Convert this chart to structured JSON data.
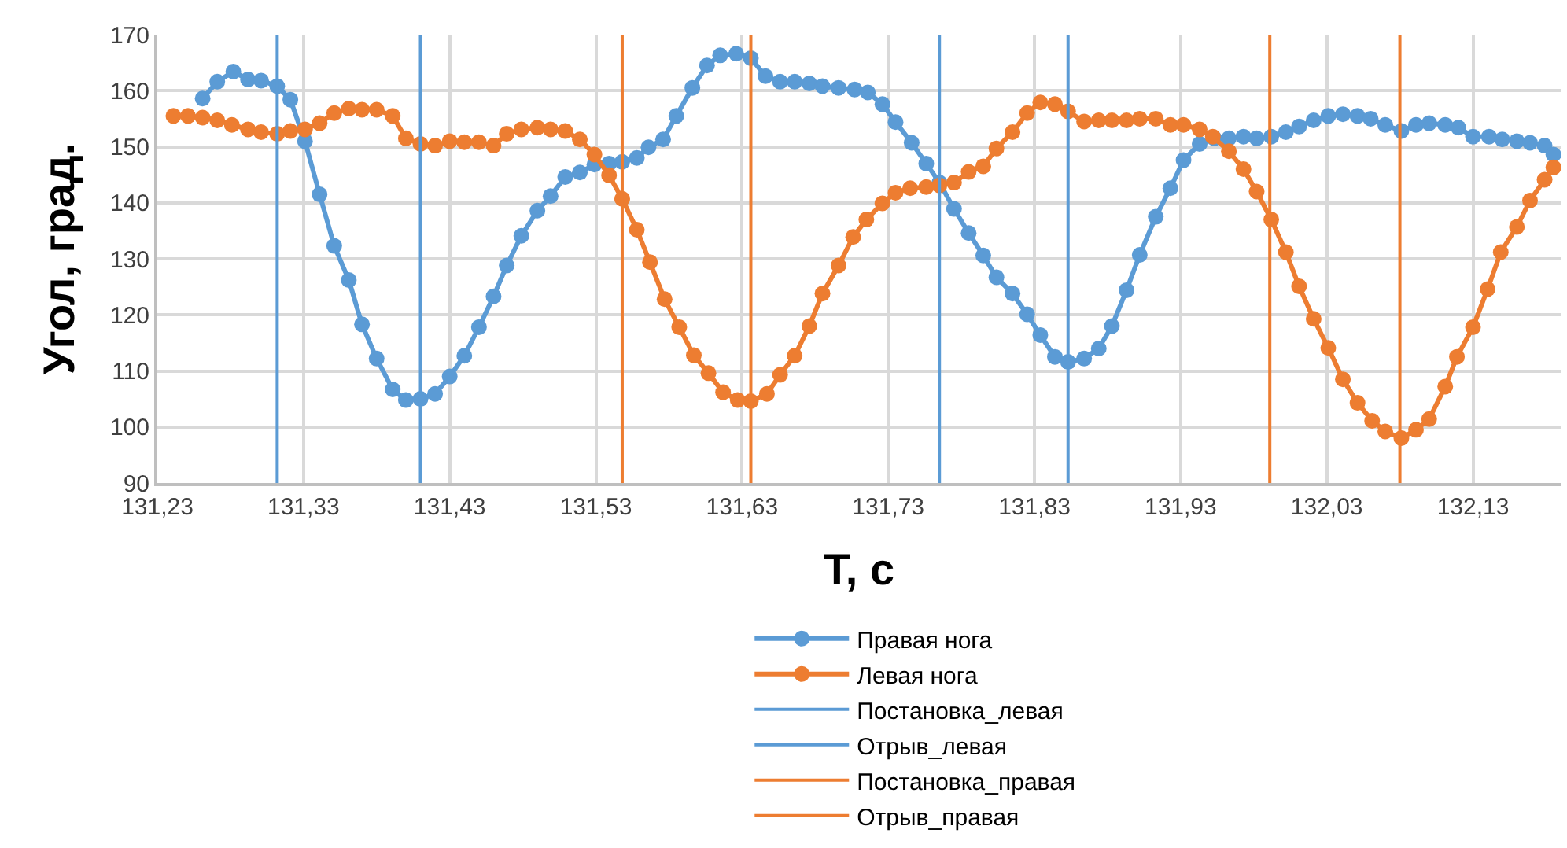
{
  "chart_data": {
    "type": "line",
    "xlabel": "T, c",
    "ylabel": "Угол, град.",
    "xlim": [
      131.23,
      132.19
    ],
    "xticks": [
      {
        "value": 131.23,
        "label": "131,23"
      },
      {
        "value": 131.33,
        "label": "131,33"
      },
      {
        "value": 131.43,
        "label": "131,43"
      },
      {
        "value": 131.53,
        "label": "131,53"
      },
      {
        "value": 131.63,
        "label": "131,63"
      },
      {
        "value": 131.73,
        "label": "131,73"
      },
      {
        "value": 131.83,
        "label": "131,83"
      },
      {
        "value": 131.93,
        "label": "131,93"
      },
      {
        "value": 132.03,
        "label": "132,03"
      },
      {
        "value": 132.13,
        "label": "132,13"
      }
    ],
    "ylim": [
      90,
      170
    ],
    "yticks": [
      90,
      100,
      110,
      120,
      130,
      140,
      150,
      160,
      170
    ],
    "grid": true,
    "legend": "bottom",
    "marker": "circle",
    "line_style": "solid",
    "series": [
      {
        "name": "Правая нога",
        "color": "#5b9bd5",
        "x": [
          131.261,
          131.271,
          131.282,
          131.292,
          131.301,
          131.312,
          131.321,
          131.331,
          131.341,
          131.351,
          131.361,
          131.37,
          131.38,
          131.391,
          131.4,
          131.41,
          131.42,
          131.43,
          131.44,
          131.45,
          131.46,
          131.469,
          131.479,
          131.49,
          131.499,
          131.509,
          131.519,
          131.529,
          131.539,
          131.548,
          131.558,
          131.566,
          131.576,
          131.585,
          131.596,
          131.606,
          131.615,
          131.626,
          131.636,
          131.646,
          131.656,
          131.666,
          131.676,
          131.685,
          131.696,
          131.707,
          131.716,
          131.726,
          131.735,
          131.746,
          131.756,
          131.765,
          131.775,
          131.785,
          131.795,
          131.804,
          131.815,
          131.825,
          131.834,
          131.844,
          131.853,
          131.864,
          131.874,
          131.883,
          131.893,
          131.902,
          131.913,
          131.923,
          131.932,
          131.943,
          131.953,
          131.963,
          131.973,
          131.982,
          131.992,
          132.002,
          132.011,
          132.021,
          132.031,
          132.041,
          132.051,
          132.06,
          132.07,
          132.081,
          132.091,
          132.1,
          132.111,
          132.12,
          132.13,
          132.141,
          132.15,
          132.16,
          132.169,
          132.179,
          132.185
        ],
        "values": [
          158.6,
          161.6,
          163.4,
          162,
          161.8,
          160.8,
          158.4,
          151,
          141.5,
          132.3,
          126.2,
          118.3,
          112.2,
          106.7,
          104.8,
          105,
          105.9,
          109,
          112.7,
          117.8,
          123.3,
          128.8,
          134.1,
          138.6,
          141.2,
          144.6,
          145.4,
          146.8,
          147,
          147.3,
          148,
          149.9,
          151.3,
          155.5,
          160.5,
          164.5,
          166.3,
          166.6,
          165.8,
          162.6,
          161.6,
          161.6,
          161.3,
          160.8,
          160.5,
          160.2,
          159.7,
          157.6,
          154.4,
          150.7,
          147,
          143.6,
          138.9,
          134.6,
          130.6,
          126.7,
          123.8,
          120.1,
          116.4,
          112.5,
          111.6,
          112.2,
          114,
          118,
          124.4,
          130.7,
          137.5,
          142.6,
          147.6,
          150.5,
          151.5,
          151.5,
          151.8,
          151.5,
          151.8,
          152.6,
          153.6,
          154.7,
          155.5,
          155.8,
          155.5,
          155,
          153.9,
          152.8,
          153.9,
          154.2,
          153.9,
          153.4,
          151.8,
          151.8,
          151.3,
          151,
          150.7,
          150.2,
          148.6
        ]
      },
      {
        "name": "Левая нога",
        "color": "#ed7d31",
        "x": [
          131.241,
          131.251,
          131.261,
          131.271,
          131.281,
          131.292,
          131.301,
          131.312,
          131.321,
          131.331,
          131.341,
          131.351,
          131.361,
          131.37,
          131.38,
          131.391,
          131.4,
          131.41,
          131.42,
          131.43,
          131.44,
          131.45,
          131.46,
          131.469,
          131.479,
          131.49,
          131.499,
          131.509,
          131.519,
          131.529,
          131.539,
          131.548,
          131.558,
          131.567,
          131.577,
          131.587,
          131.597,
          131.607,
          131.617,
          131.627,
          131.636,
          131.647,
          131.656,
          131.666,
          131.676,
          131.685,
          131.696,
          131.706,
          131.715,
          131.726,
          131.735,
          131.745,
          131.756,
          131.765,
          131.775,
          131.785,
          131.795,
          131.804,
          131.815,
          131.825,
          131.834,
          131.844,
          131.853,
          131.864,
          131.874,
          131.883,
          131.893,
          131.902,
          131.913,
          131.923,
          131.932,
          131.943,
          131.952,
          131.963,
          131.973,
          131.982,
          131.992,
          132.002,
          132.011,
          132.021,
          132.031,
          132.041,
          132.051,
          132.061,
          132.07,
          132.081,
          132.091,
          132.1,
          132.111,
          132.119,
          132.13,
          132.14,
          132.149,
          132.16,
          132.169,
          132.179,
          132.185
        ],
        "values": [
          155.5,
          155.5,
          155.2,
          154.7,
          153.9,
          153.1,
          152.6,
          152.3,
          152.8,
          153.1,
          154.2,
          156,
          156.8,
          156.6,
          156.6,
          155.5,
          151.5,
          150.5,
          150.2,
          151,
          150.8,
          150.8,
          150.2,
          152.3,
          153.1,
          153.4,
          153.1,
          152.8,
          151.3,
          148.6,
          144.9,
          140.7,
          135.2,
          129.4,
          122.8,
          117.8,
          112.8,
          109.6,
          106.2,
          104.8,
          104.6,
          105.9,
          109.3,
          112.7,
          118,
          123.8,
          128.8,
          133.9,
          137,
          139.9,
          141.8,
          142.6,
          142.8,
          143.1,
          143.6,
          145.5,
          146.5,
          149.7,
          152.6,
          156,
          157.9,
          157.6,
          156.3,
          154.5,
          154.7,
          154.7,
          154.7,
          155,
          155,
          153.9,
          153.9,
          153.1,
          151.8,
          149.2,
          146,
          142,
          137,
          131.2,
          125.1,
          119.3,
          114.1,
          108.5,
          104.3,
          101.1,
          99.2,
          98,
          99.5,
          101.4,
          107.2,
          112.5,
          117.8,
          124.6,
          131.2,
          135.7,
          140.4,
          144.1,
          146.3
        ]
      }
    ],
    "ref_lines": [
      {
        "axis": "x",
        "value": 131.312,
        "label": "Постановка_левая",
        "color": "#5b9bd5"
      },
      {
        "axis": "x",
        "value": 131.765,
        "color": "#5b9bd5"
      },
      {
        "axis": "x",
        "value": 131.41,
        "label": "Отрыв_левая",
        "color": "#5b9bd5"
      },
      {
        "axis": "x",
        "value": 131.853,
        "color": "#5b9bd5"
      },
      {
        "axis": "x",
        "value": 131.548,
        "label": "Постановка_правая",
        "color": "#ed7d31"
      },
      {
        "axis": "x",
        "value": 131.991,
        "color": "#ed7d31"
      },
      {
        "axis": "x",
        "value": 131.636,
        "label": "Отрыв_правая",
        "color": "#ed7d31"
      },
      {
        "axis": "x",
        "value": 132.08,
        "color": "#ed7d31"
      }
    ]
  }
}
